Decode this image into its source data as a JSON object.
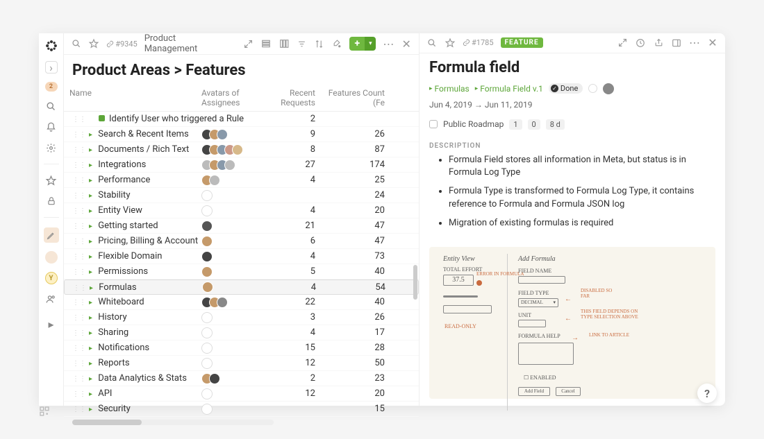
{
  "left_rail": {
    "badge": "2"
  },
  "header_left": {
    "id_prefix": "#9345",
    "crumb": "Product Management"
  },
  "header_right": {
    "id_prefix": "#1785",
    "tag": "FEATURE"
  },
  "page_title": "Product Areas > Features",
  "columns": {
    "name": "Name",
    "avatars": "Avatars of Assignees",
    "recent": "Recent Requests",
    "features": "Features Count (Fe"
  },
  "rows": [
    {
      "leaf": true,
      "name": "Identify User who triggered a Rule",
      "av_colors": [],
      "recent": "2",
      "features": ""
    },
    {
      "leaf": false,
      "name": "Search & Recent Items",
      "av_colors": [
        "#444",
        "#c59a6a",
        "#8899aa"
      ],
      "recent": "9",
      "features": "26"
    },
    {
      "leaf": false,
      "name": "Documents / Rich Text",
      "av_colors": [
        "#444",
        "#c59a6a",
        "#8899aa",
        "#c98",
        "#d7b98a"
      ],
      "recent": "8",
      "features": "87"
    },
    {
      "leaf": false,
      "name": "Integrations",
      "av_colors": [
        "#bbb",
        "#c59a6a",
        "#8899aa",
        "#bbb"
      ],
      "recent": "27",
      "features": "174"
    },
    {
      "leaf": false,
      "name": "Performance",
      "av_colors": [
        "#c59a6a",
        "#bbb"
      ],
      "recent": "4",
      "features": "25"
    },
    {
      "leaf": false,
      "name": "Stability",
      "av_colors": [],
      "empty_av": true,
      "recent": "",
      "features": "24"
    },
    {
      "leaf": false,
      "name": "Entity View",
      "av_colors": [],
      "empty_av": true,
      "recent": "4",
      "features": "20"
    },
    {
      "leaf": false,
      "name": "Getting started",
      "av_colors": [
        "#555"
      ],
      "recent": "21",
      "features": "47"
    },
    {
      "leaf": false,
      "name": "Pricing, Billing & Account",
      "av_colors": [
        "#c59a6a"
      ],
      "recent": "6",
      "features": "47"
    },
    {
      "leaf": false,
      "name": "Flexible Domain",
      "av_colors": [
        "#444"
      ],
      "recent": "4",
      "features": "73"
    },
    {
      "leaf": false,
      "name": "Permissions",
      "av_colors": [
        "#c59a6a"
      ],
      "recent": "5",
      "features": "40"
    },
    {
      "leaf": false,
      "name": "Formulas",
      "av_colors": [
        "#c59a6a"
      ],
      "selected": true,
      "recent": "4",
      "features": "54"
    },
    {
      "leaf": false,
      "name": "Whiteboard",
      "av_colors": [
        "#444",
        "#c59a6a",
        "#888"
      ],
      "recent": "22",
      "features": "40"
    },
    {
      "leaf": false,
      "name": "History",
      "av_colors": [],
      "empty_av": true,
      "recent": "3",
      "features": "26"
    },
    {
      "leaf": false,
      "name": "Sharing",
      "av_colors": [],
      "empty_av": true,
      "recent": "4",
      "features": "17"
    },
    {
      "leaf": false,
      "name": "Notifications",
      "av_colors": [],
      "empty_av": true,
      "recent": "15",
      "features": "28"
    },
    {
      "leaf": false,
      "name": "Reports",
      "av_colors": [],
      "empty_av": true,
      "recent": "12",
      "features": "50"
    },
    {
      "leaf": false,
      "name": "Data Analytics & Stats",
      "av_colors": [
        "#c59a6a",
        "#444"
      ],
      "recent": "2",
      "features": "23"
    },
    {
      "leaf": false,
      "name": "API",
      "av_colors": [],
      "empty_av": true,
      "recent": "12",
      "features": "20"
    },
    {
      "leaf": false,
      "name": "Security",
      "av_colors": [],
      "empty_av": true,
      "recent": "",
      "features": "15"
    }
  ],
  "detail": {
    "title": "Formula field",
    "crumb1": "Formulas",
    "crumb2": "Formula Field v.1",
    "status": "Done",
    "date_range": "Jun 4, 2019 → Jun 11, 2019",
    "roadmap_label": "Public Roadmap",
    "num1": "1",
    "num2": "0",
    "num3": "8 d",
    "desc_heading": "DESCRIPTION",
    "bullets": [
      "Formula Field stores all information in Meta, but status is in Formula Log Type",
      "Formula Type is transformed to Formula Log Type, it contains reference to Formula and Formula JSON log",
      "Migration of existing formulas is required"
    ],
    "sketch": {
      "left_title": "Entity View",
      "right_title": "Add Formula",
      "total_effort": "TOTAL EFFORT",
      "effort_val": "37.5",
      "read_only": "READ-ONLY",
      "field_name": "FIELD NAME",
      "field_type": "FIELD TYPE",
      "decimal": "DECIMAL",
      "unit": "UNIT",
      "formula_help": "FORMULA HELP",
      "enabled": "ENABLED",
      "add_field": "Add Field",
      "cancel": "Cancel",
      "note_disabled": "DISABLED SO FAR",
      "note_depends": "THIS FIELD DEPENDS ON TYPE SELECTION ABOVE",
      "note_link": "LINK TO ARTICLE",
      "note_error": "ERROR IN FORMULA"
    }
  },
  "help": "?"
}
